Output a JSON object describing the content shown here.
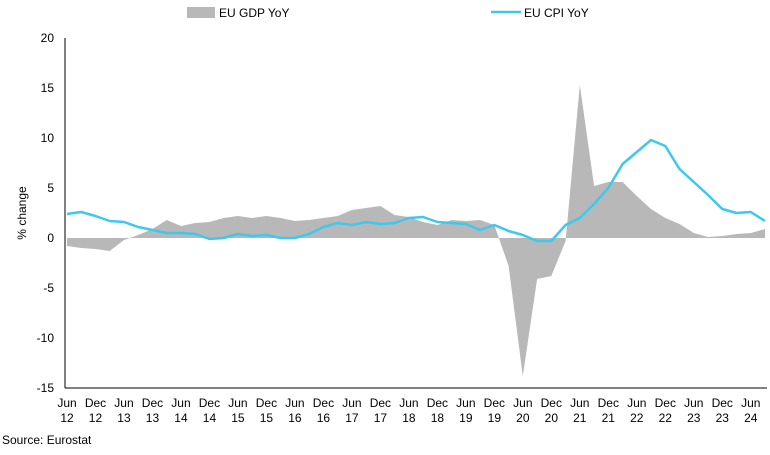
{
  "chart_data": {
    "type": "area",
    "ylabel": "% change",
    "ylim": [
      -15,
      20
    ],
    "yticks": [
      20,
      15,
      10,
      5,
      0,
      -5,
      -10,
      -15
    ],
    "x_ticks": [
      [
        "Jun",
        "12"
      ],
      [
        "Dec",
        "12"
      ],
      [
        "Jun",
        "13"
      ],
      [
        "Dec",
        "13"
      ],
      [
        "Jun",
        "14"
      ],
      [
        "Dec",
        "14"
      ],
      [
        "Jun",
        "15"
      ],
      [
        "Dec",
        "15"
      ],
      [
        "Jun",
        "16"
      ],
      [
        "Dec",
        "16"
      ],
      [
        "Jun",
        "17"
      ],
      [
        "Dec",
        "17"
      ],
      [
        "Jun",
        "18"
      ],
      [
        "Dec",
        "18"
      ],
      [
        "Jun",
        "19"
      ],
      [
        "Dec",
        "19"
      ],
      [
        "Jun",
        "20"
      ],
      [
        "Dec",
        "20"
      ],
      [
        "Jun",
        "21"
      ],
      [
        "Dec",
        "21"
      ],
      [
        "Jun",
        "22"
      ],
      [
        "Dec",
        "22"
      ],
      [
        "Jun",
        "23"
      ],
      [
        "Dec",
        "23"
      ],
      [
        "Jun",
        "24"
      ]
    ],
    "x": [
      "Jun 12",
      "Sep 12",
      "Dec 12",
      "Mar 13",
      "Jun 13",
      "Sep 13",
      "Dec 13",
      "Mar 14",
      "Jun 14",
      "Sep 14",
      "Dec 14",
      "Mar 15",
      "Jun 15",
      "Sep 15",
      "Dec 15",
      "Mar 16",
      "Jun 16",
      "Sep 16",
      "Dec 16",
      "Mar 17",
      "Jun 17",
      "Sep 17",
      "Dec 17",
      "Mar 18",
      "Jun 18",
      "Sep 18",
      "Dec 18",
      "Mar 19",
      "Jun 19",
      "Sep 19",
      "Dec 19",
      "Mar 20",
      "Jun 20",
      "Sep 20",
      "Dec 20",
      "Mar 21",
      "Jun 21",
      "Sep 21",
      "Dec 21",
      "Mar 22",
      "Jun 22",
      "Sep 22",
      "Dec 22",
      "Mar 23",
      "Jun 23",
      "Sep 23",
      "Dec 23",
      "Mar 24",
      "Jun 24",
      "Sep 24"
    ],
    "series": [
      {
        "name": "EU GDP YoY",
        "kind": "area",
        "color": "#b8b8b8",
        "values": [
          -0.8,
          -1.0,
          -1.1,
          -1.3,
          -0.2,
          0.3,
          0.9,
          1.8,
          1.2,
          1.5,
          1.6,
          2.0,
          2.2,
          2.0,
          2.2,
          2.0,
          1.7,
          1.8,
          2.0,
          2.2,
          2.8,
          3.0,
          3.2,
          2.3,
          2.1,
          1.6,
          1.3,
          1.8,
          1.7,
          1.8,
          1.3,
          -2.8,
          -13.8,
          -4.1,
          -3.8,
          -0.3,
          15.3,
          5.2,
          5.6,
          5.6,
          4.2,
          2.9,
          2.0,
          1.4,
          0.5,
          0.1,
          0.2,
          0.4,
          0.5,
          0.9
        ]
      },
      {
        "name": "EU CPI YoY",
        "kind": "line",
        "color": "#3ec8ee",
        "values": [
          2.4,
          2.6,
          2.2,
          1.7,
          1.6,
          1.1,
          0.8,
          0.5,
          0.5,
          0.4,
          -0.1,
          0.0,
          0.4,
          0.2,
          0.3,
          0.0,
          0.0,
          0.4,
          1.1,
          1.5,
          1.3,
          1.6,
          1.4,
          1.5,
          2.0,
          2.1,
          1.6,
          1.5,
          1.4,
          0.8,
          1.3,
          0.7,
          0.3,
          -0.3,
          -0.3,
          1.3,
          2.0,
          3.4,
          5.0,
          7.4,
          8.6,
          9.8,
          9.2,
          6.9,
          5.6,
          4.3,
          2.9,
          2.5,
          2.6,
          1.7
        ]
      }
    ],
    "legend_position": "top",
    "grid": false
  },
  "source": "Source: Eurostat"
}
